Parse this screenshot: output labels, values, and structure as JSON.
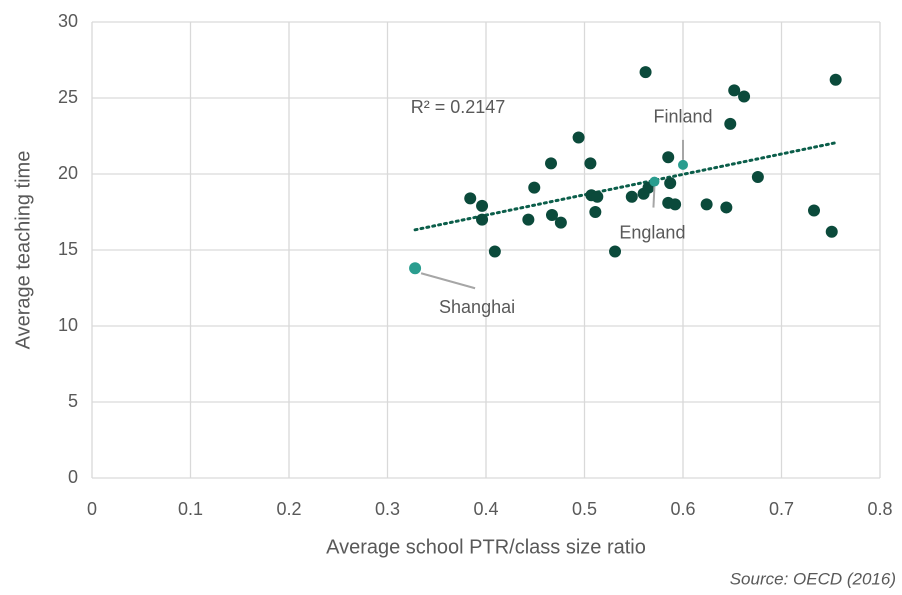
{
  "chart_data": {
    "type": "scatter",
    "xlabel": "Average school PTR/class size ratio",
    "ylabel": "Average teaching time",
    "source": "Source: OECD (2016)",
    "xlim": [
      0,
      0.8
    ],
    "xticks": [
      0,
      0.1,
      0.2,
      0.3,
      0.4,
      0.5,
      0.6,
      0.7,
      0.8
    ],
    "ylim": [
      0,
      30
    ],
    "yticks": [
      0,
      5,
      10,
      15,
      20,
      25,
      30
    ],
    "grid": true,
    "color": "#0b4a3b",
    "x": [
      0.384,
      0.396,
      0.396,
      0.409,
      0.443,
      0.449,
      0.466,
      0.467,
      0.476,
      0.494,
      0.507,
      0.513,
      0.511,
      0.506,
      0.531,
      0.548,
      0.562,
      0.56,
      0.565,
      0.585,
      0.587,
      0.585,
      0.592,
      0.624,
      0.644,
      0.648,
      0.652,
      0.662,
      0.676,
      0.733,
      0.751,
      0.755
    ],
    "y": [
      18.4,
      17.9,
      17.0,
      14.9,
      17.0,
      19.1,
      20.7,
      17.3,
      16.8,
      22.4,
      18.6,
      18.5,
      17.5,
      20.7,
      14.9,
      18.5,
      26.7,
      18.7,
      19.1,
      21.1,
      19.4,
      18.1,
      18.0,
      18.0,
      17.8,
      23.3,
      25.5,
      25.1,
      19.8,
      17.6,
      16.2,
      26.2
    ],
    "highlight_color": "#2a9d8f",
    "highlights": [
      {
        "label": "Shanghai",
        "x": 0.328,
        "y": 13.8
      },
      {
        "label": "England",
        "x": 0.571,
        "y": 19.5
      },
      {
        "label": "Finland",
        "x": 0.6,
        "y": 20.6
      }
    ],
    "trendline": {
      "label": "R² = 0.2147",
      "color": "#0b5e4a"
    }
  }
}
